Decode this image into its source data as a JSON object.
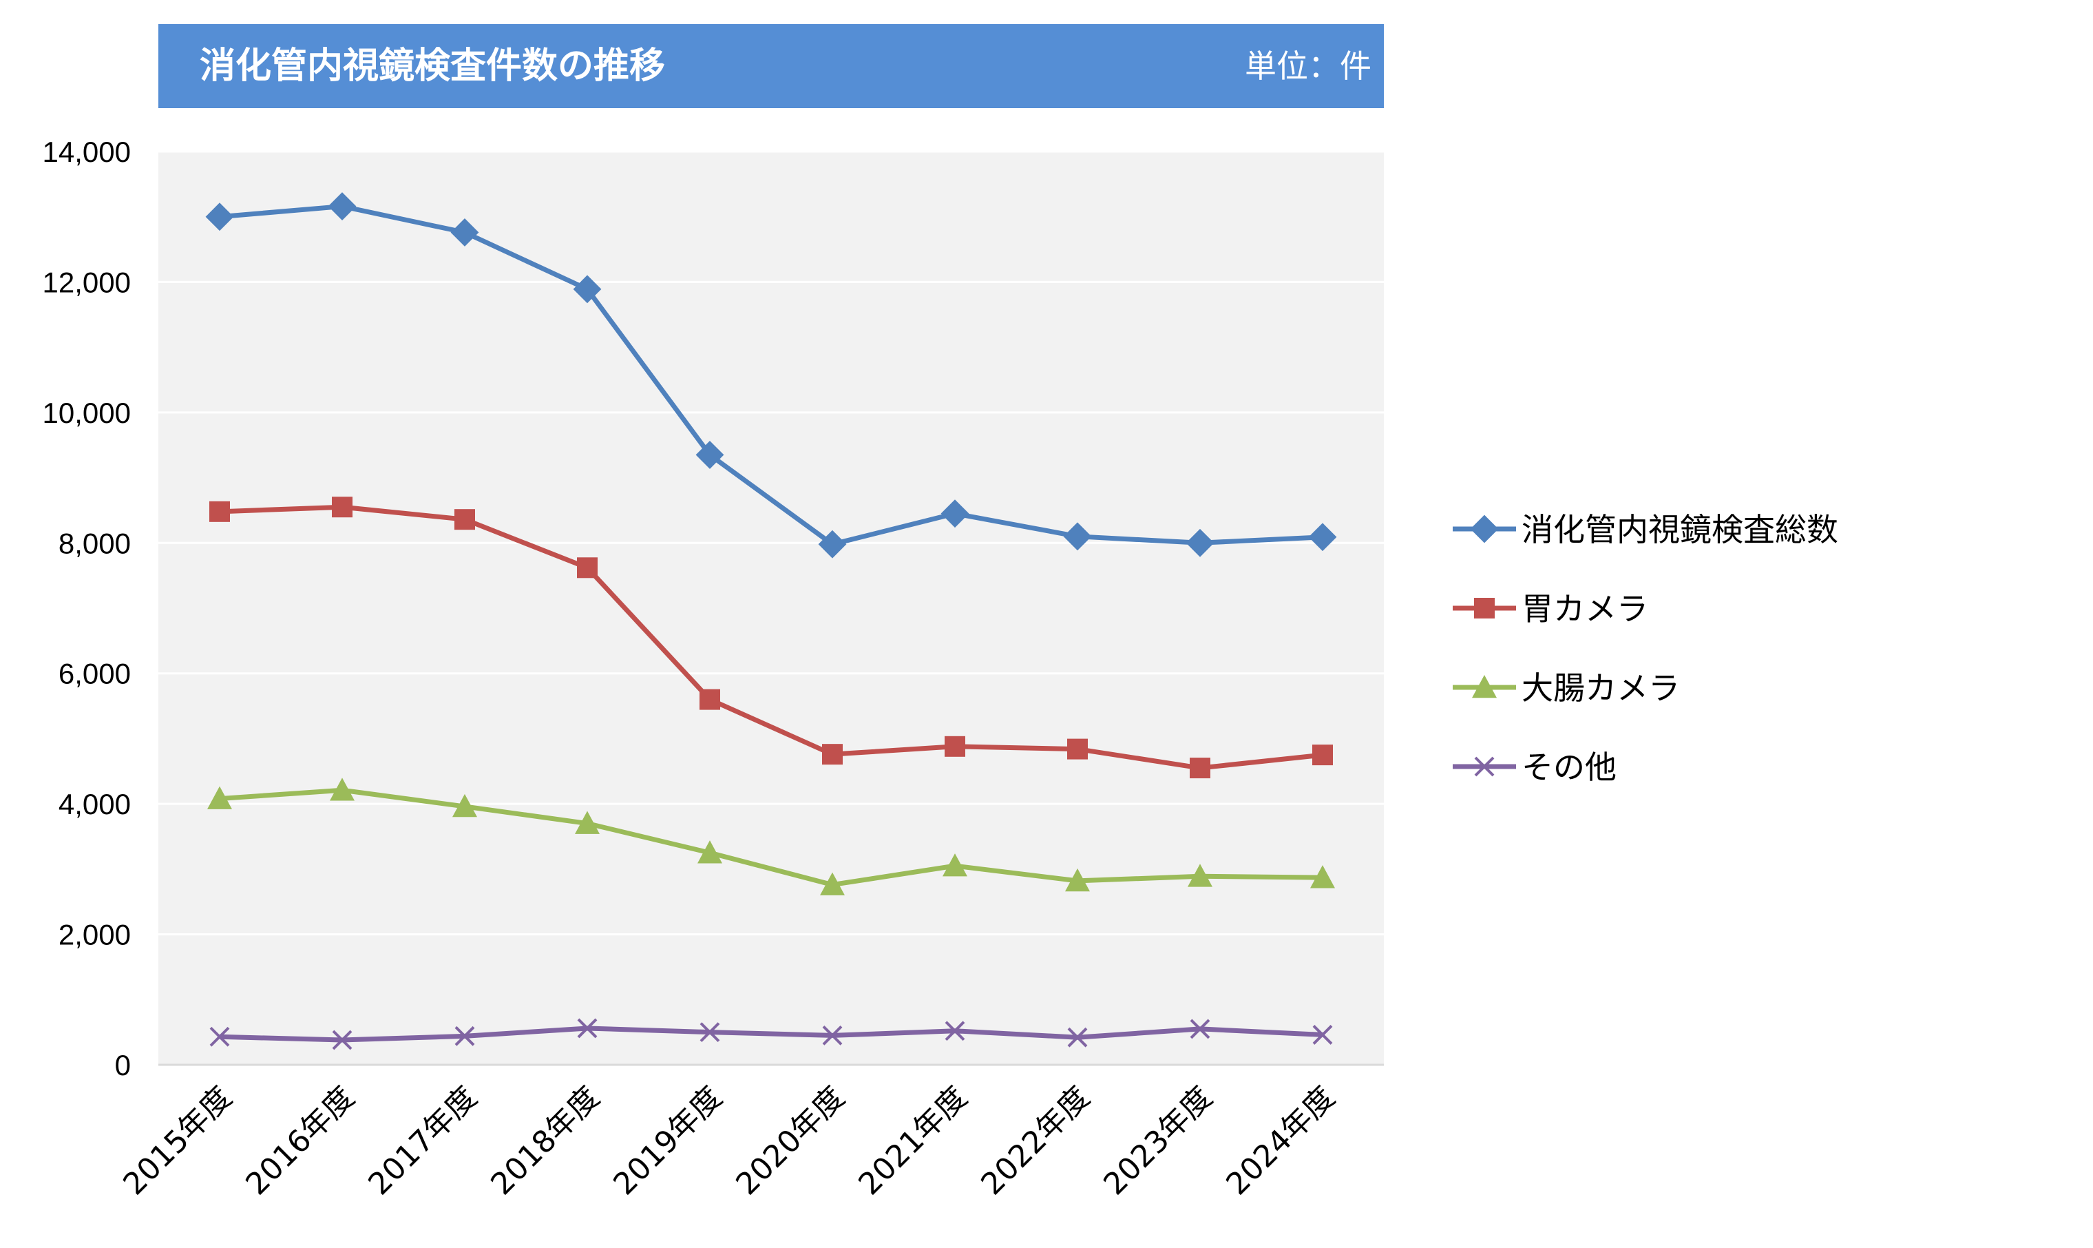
{
  "header": {
    "title": "消化管内視鏡検査件数の推移",
    "unit": "単位：件",
    "banner_color": "#558ed5"
  },
  "chart_data": {
    "type": "line",
    "title": "消化管内視鏡検査件数の推移",
    "unit_label": "単位：件",
    "categories": [
      "2015年度",
      "2016年度",
      "2017年度",
      "2018年度",
      "2019年度",
      "2020年度",
      "2021年度",
      "2022年度",
      "2023年度",
      "2024年度"
    ],
    "ylim": [
      0,
      14000
    ],
    "yticks": [
      0,
      2000,
      4000,
      6000,
      8000,
      10000,
      12000,
      14000
    ],
    "ytick_labels": [
      "0",
      "2,000",
      "4,000",
      "6,000",
      "8,000",
      "10,000",
      "12,000",
      "14,000"
    ],
    "grid": true,
    "legend_position": "right",
    "plot_background": "#f2f2f2",
    "series": [
      {
        "name": "消化管内視鏡検査総数",
        "color": "#4f81bd",
        "marker": "diamond",
        "values": [
          13000,
          13160,
          12760,
          11890,
          9350,
          7980,
          8450,
          8100,
          8000,
          8090
        ]
      },
      {
        "name": "胃カメラ",
        "color": "#c0504d",
        "marker": "square",
        "values": [
          8480,
          8550,
          8360,
          7620,
          5600,
          4760,
          4880,
          4840,
          4550,
          4750
        ]
      },
      {
        "name": "大腸カメラ",
        "color": "#9bbb59",
        "marker": "triangle",
        "values": [
          4080,
          4210,
          3960,
          3700,
          3250,
          2760,
          3050,
          2820,
          2890,
          2870
        ]
      },
      {
        "name": "その他",
        "color": "#8064a2",
        "marker": "x",
        "values": [
          430,
          380,
          440,
          560,
          500,
          450,
          520,
          420,
          550,
          460
        ]
      }
    ]
  }
}
